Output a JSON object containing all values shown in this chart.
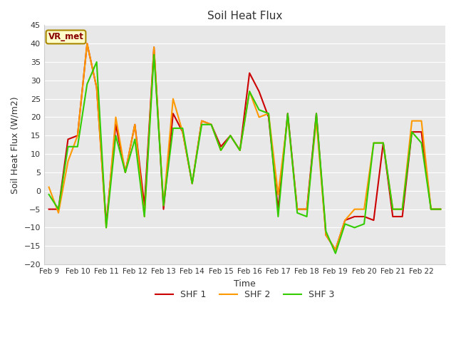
{
  "title": "Soil Heat Flux",
  "xlabel": "Time",
  "ylabel": "Soil Heat Flux (W/m2)",
  "ylim": [
    -20,
    45
  ],
  "figure_bg": "#ffffff",
  "plot_bg_color": "#e8e8e8",
  "legend_label": "VR_met",
  "series": {
    "SHF 1": {
      "color": "#cc0000",
      "y": [
        -5,
        -5,
        14,
        15,
        40,
        28,
        -9,
        18,
        5,
        18,
        -4,
        39,
        -5,
        21,
        16,
        2,
        19,
        18,
        12,
        15,
        11,
        32,
        27,
        20,
        -5,
        21,
        -5,
        -5,
        21,
        -12,
        -16,
        -8,
        -7,
        -7,
        -8,
        13,
        -7,
        -7,
        16,
        16,
        -5,
        -5
      ]
    },
    "SHF 2": {
      "color": "#ff9900",
      "y": [
        1,
        -6,
        8,
        15,
        40,
        28,
        -10,
        20,
        5,
        18,
        -7,
        39,
        -4,
        25,
        16,
        2,
        19,
        18,
        11,
        15,
        11,
        27,
        20,
        21,
        -1,
        20,
        -5,
        -5,
        19,
        -12,
        -16,
        -8,
        -5,
        -5,
        13,
        13,
        -5,
        -5,
        19,
        19,
        -5,
        -5
      ]
    },
    "SHF 3": {
      "color": "#33cc00",
      "y": [
        -1,
        -5,
        12,
        12,
        29,
        35,
        -10,
        15,
        5,
        14,
        -7,
        37,
        -4,
        17,
        17,
        2,
        18,
        18,
        11,
        15,
        11,
        27,
        22,
        21,
        -7,
        21,
        -6,
        -7,
        21,
        -11,
        -17,
        -9,
        -10,
        -9,
        13,
        13,
        -5,
        -5,
        16,
        13,
        -5,
        -5
      ]
    }
  },
  "xtick_labels": [
    "Feb 9",
    "Feb 10",
    "Feb 11",
    "Feb 12",
    "Feb 13",
    "Feb 14",
    "Feb 15",
    "Feb 16",
    "Feb 17",
    "Feb 18",
    "Feb 19",
    "Feb 20",
    "Feb 21",
    "Feb 22"
  ],
  "xtick_positions": [
    0,
    3,
    6,
    9,
    12,
    15,
    18,
    21,
    24,
    27,
    30,
    33,
    36,
    39
  ],
  "yticks": [
    -20,
    -15,
    -10,
    -5,
    0,
    5,
    10,
    15,
    20,
    25,
    30,
    35,
    40,
    45
  ],
  "grid_color": "#ffffff",
  "line_width": 1.5,
  "n_points": 42
}
